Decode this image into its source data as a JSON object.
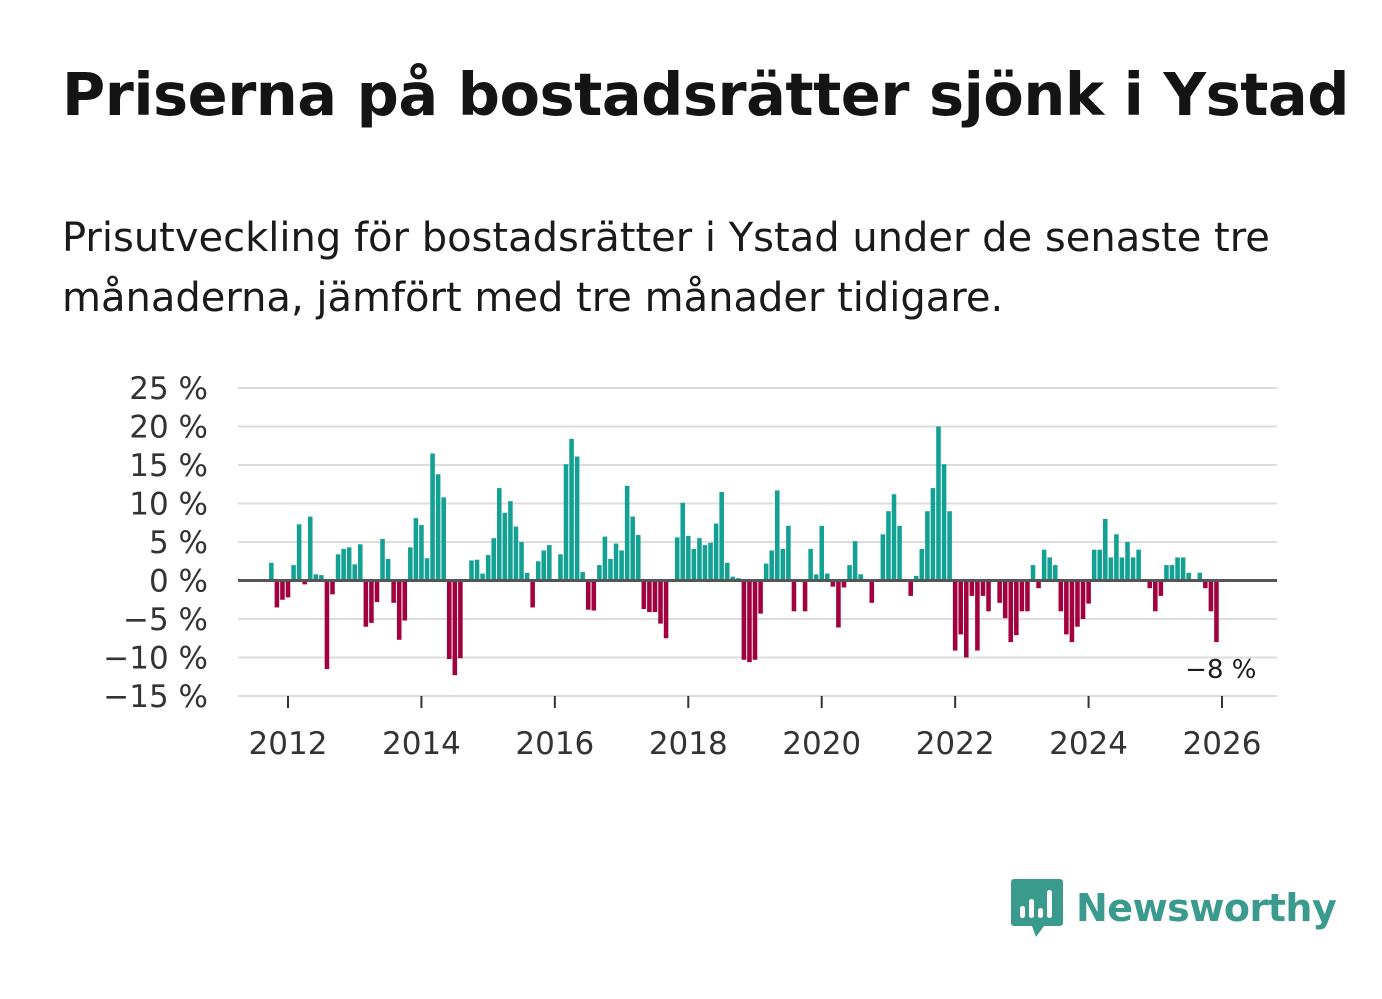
{
  "title": "Priserna på bostadsrätter sjönk i Ystad",
  "subtitle": "Prisutveckling för bostadsrätter i Ystad under de senaste tre månaderna, jämfört med tre månader tidigare.",
  "brand": {
    "name": "Newsworthy",
    "icon": "bar-chart-speech-bubble-icon",
    "color": "#3a9a8e"
  },
  "colors": {
    "positive": "#13a194",
    "negative": "#a3003f",
    "grid": "#dddddd",
    "zero_line": "#555555"
  },
  "chart_data": {
    "type": "bar",
    "title": "",
    "xlabel": "",
    "ylabel": "",
    "ylim": [
      -15,
      25
    ],
    "y_ticks": [
      25,
      20,
      15,
      10,
      5,
      0,
      -5,
      -10,
      -15
    ],
    "y_tick_labels": [
      "25 %",
      "20 %",
      "15 %",
      "10 %",
      "5 %",
      "0 %",
      "−5 %",
      "−10 %",
      "−15 %"
    ],
    "x_ticks": [
      2012,
      2014,
      2016,
      2018,
      2020,
      2022,
      2024,
      2026
    ],
    "x_tick_labels": [
      "2012",
      "2014",
      "2016",
      "2018",
      "2020",
      "2022",
      "2024",
      "2026"
    ],
    "x_start": 2011.667,
    "x_step": 0.0833333,
    "last_value_label": "−8 %",
    "series": [
      {
        "name": "Prisutveckling",
        "unit": "%",
        "values": [
          0,
          2.3,
          -3.5,
          -2.5,
          -2.2,
          2.0,
          7.3,
          -0.5,
          8.3,
          0.8,
          0.7,
          -11.5,
          -1.8,
          3.4,
          4.1,
          4.3,
          2.1,
          4.7,
          -6.0,
          -5.5,
          -2.8,
          5.4,
          2.8,
          -2.9,
          -7.7,
          -5.2,
          4.3,
          8.1,
          7.2,
          2.9,
          16.5,
          13.8,
          10.8,
          -10.2,
          -12.3,
          -10.1,
          -0.2,
          2.6,
          2.7,
          0.9,
          3.3,
          5.5,
          12.0,
          8.8,
          10.3,
          7.0,
          5.0,
          1.0,
          -3.5,
          2.5,
          3.9,
          4.6,
          0.2,
          3.4,
          15.1,
          18.4,
          16.1,
          1.1,
          -3.8,
          -3.9,
          2.0,
          5.7,
          2.8,
          4.8,
          3.9,
          12.3,
          8.3,
          5.9,
          -3.7,
          -4.1,
          -4.1,
          -5.6,
          -7.5,
          0,
          5.6,
          10.1,
          5.8,
          4.1,
          5.5,
          4.6,
          4.9,
          7.4,
          11.5,
          2.3,
          0.5,
          0.3,
          -10.3,
          -10.6,
          -10.3,
          -4.3,
          2.2,
          3.9,
          11.7,
          4.1,
          7.1,
          -4.0,
          0,
          -4.0,
          4.1,
          0.8,
          7.1,
          0.9,
          -0.8,
          -6.1,
          -0.9,
          2.0,
          5.1,
          0.8,
          0,
          -2.9,
          0,
          6.0,
          9.0,
          11.2,
          7.1,
          0,
          -2.0,
          0.6,
          4.1,
          9.0,
          12.0,
          20.0,
          15.1,
          9.0,
          -9.1,
          -7.0,
          -10.0,
          -2.0,
          -9.1,
          -2.0,
          -4.0,
          0,
          -2.9,
          -4.9,
          -8.0,
          -7.1,
          -4.0,
          -4.0,
          2.0,
          -1.0,
          4.0,
          3.0,
          2.0,
          -4.0,
          -7.0,
          -8.0,
          -6.0,
          -5.0,
          -3.0,
          4.0,
          4.0,
          8.0,
          3.0,
          6.0,
          3.0,
          5.0,
          3.0,
          4.0,
          0,
          -1.0,
          -4.0,
          -2.0,
          2.0,
          2.0,
          3.0,
          3.0,
          1.0,
          0,
          1.0,
          -1.0,
          -4.0,
          -8.0
        ]
      }
    ]
  }
}
